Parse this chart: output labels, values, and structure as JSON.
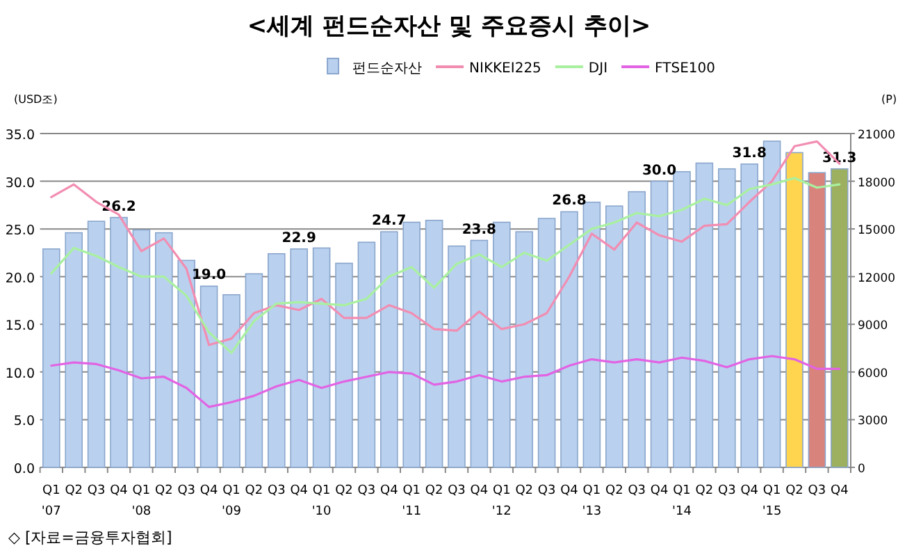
{
  "chart_data": {
    "type": "bar",
    "title": "<세계 펀드순자산 및 주요증시 추이>",
    "ylabel": "(USD조)",
    "y2label": "(P)",
    "categories": [
      "Q1 '07",
      "Q2",
      "Q3",
      "Q4",
      "Q1 '08",
      "Q2",
      "Q3",
      "Q4",
      "Q1 '09",
      "Q2",
      "Q3",
      "Q4",
      "Q1 '10",
      "Q2",
      "Q3",
      "Q4",
      "Q1 '11",
      "Q2",
      "Q3",
      "Q4",
      "Q1 '12",
      "Q2",
      "Q3",
      "Q4",
      "Q1 '13",
      "Q2",
      "Q3",
      "Q4",
      "Q1 '14",
      "Q2",
      "Q3",
      "Q4",
      "Q1 '15",
      "Q2",
      "Q3",
      "Q4"
    ],
    "ylim": [
      0,
      35
    ],
    "yticks": [
      {
        "value": 0,
        "label": "0.0"
      },
      {
        "value": 5,
        "label": "5.0"
      },
      {
        "value": 10,
        "label": "10.0"
      },
      {
        "value": 15,
        "label": "15.0"
      },
      {
        "value": 20,
        "label": "20.0"
      },
      {
        "value": 25,
        "label": "25.0"
      },
      {
        "value": 30,
        "label": "30.0"
      },
      {
        "value": 35,
        "label": "35.0"
      }
    ],
    "y2lim": [
      0,
      21000
    ],
    "y2ticks": [
      0,
      3000,
      6000,
      9000,
      12000,
      15000,
      18000,
      21000
    ],
    "grid": "y",
    "legend": "top",
    "marker": "none",
    "line_style": "solid",
    "series": [
      {
        "name": "펀드순자산",
        "color": "#b9d1ef",
        "colors": [
          "#b9d1ef",
          "#b9d1ef",
          "#b9d1ef",
          "#b9d1ef",
          "#b9d1ef",
          "#b9d1ef",
          "#b9d1ef",
          "#b9d1ef",
          "#b9d1ef",
          "#b9d1ef",
          "#b9d1ef",
          "#b9d1ef",
          "#b9d1ef",
          "#b9d1ef",
          "#b9d1ef",
          "#b9d1ef",
          "#b9d1ef",
          "#b9d1ef",
          "#b9d1ef",
          "#b9d1ef",
          "#b9d1ef",
          "#b9d1ef",
          "#b9d1ef",
          "#b9d1ef",
          "#b9d1ef",
          "#b9d1ef",
          "#b9d1ef",
          "#b9d1ef",
          "#b9d1ef",
          "#b9d1ef",
          "#b9d1ef",
          "#b9d1ef",
          "#b9d1ef",
          "#ffd54f",
          "#d9837d",
          "#9db060"
        ],
        "values": [
          22.9,
          24.6,
          25.8,
          26.2,
          24.9,
          24.6,
          21.7,
          19.0,
          18.1,
          20.3,
          22.4,
          22.9,
          23.0,
          21.4,
          23.6,
          24.7,
          25.7,
          25.9,
          23.2,
          23.8,
          25.7,
          24.7,
          26.1,
          26.8,
          27.8,
          27.4,
          28.9,
          30.0,
          31.0,
          31.9,
          31.3,
          31.8,
          34.2,
          33.0,
          30.9,
          31.3
        ],
        "value_labels": [
          null,
          null,
          null,
          "26.2",
          null,
          null,
          null,
          "19.0",
          null,
          null,
          null,
          "22.9",
          null,
          null,
          null,
          "24.7",
          null,
          null,
          null,
          "23.8",
          null,
          null,
          null,
          "26.8",
          null,
          null,
          null,
          "30.0",
          null,
          null,
          null,
          "31.8",
          null,
          null,
          null,
          "31.3"
        ]
      },
      {
        "name": "NIKKEI225",
        "type": "line",
        "axis": "y2",
        "color": "#f28db2",
        "values": [
          17000,
          17800,
          16700,
          15900,
          13600,
          14400,
          12500,
          7700,
          8100,
          9700,
          10200,
          9900,
          10600,
          9400,
          9400,
          10200,
          9700,
          8700,
          8600,
          9800,
          8700,
          9000,
          9700,
          12000,
          14700,
          13700,
          15400,
          14600,
          14200,
          15200,
          15300,
          16700,
          18000,
          20200,
          20500,
          19100
        ]
      },
      {
        "name": "DJI",
        "type": "line",
        "axis": "y2",
        "color": "#a9f0a0",
        "values": [
          12200,
          13800,
          13300,
          12600,
          12000,
          12000,
          10800,
          8500,
          7200,
          9200,
          10300,
          10400,
          10300,
          10200,
          10600,
          12000,
          12600,
          11300,
          12800,
          13400,
          12600,
          13500,
          13000,
          14000,
          15000,
          15400,
          16000,
          15800,
          16200,
          16900,
          16500,
          17500,
          17800,
          18200,
          17600,
          17800
        ]
      },
      {
        "name": "FTSE100",
        "type": "line",
        "axis": "y2",
        "color": "#e263e3",
        "values": [
          6400,
          6600,
          6500,
          6100,
          5600,
          5700,
          5000,
          3800,
          4100,
          4500,
          5100,
          5500,
          5000,
          5400,
          5700,
          6000,
          5900,
          5200,
          5400,
          5800,
          5400,
          5700,
          5800,
          6400,
          6800,
          6600,
          6800,
          6600,
          6900,
          6700,
          6300,
          6800,
          7000,
          6800,
          6200,
          6200
        ]
      }
    ],
    "annotations": [
      "◇ [자료=금융투자협회]"
    ]
  }
}
